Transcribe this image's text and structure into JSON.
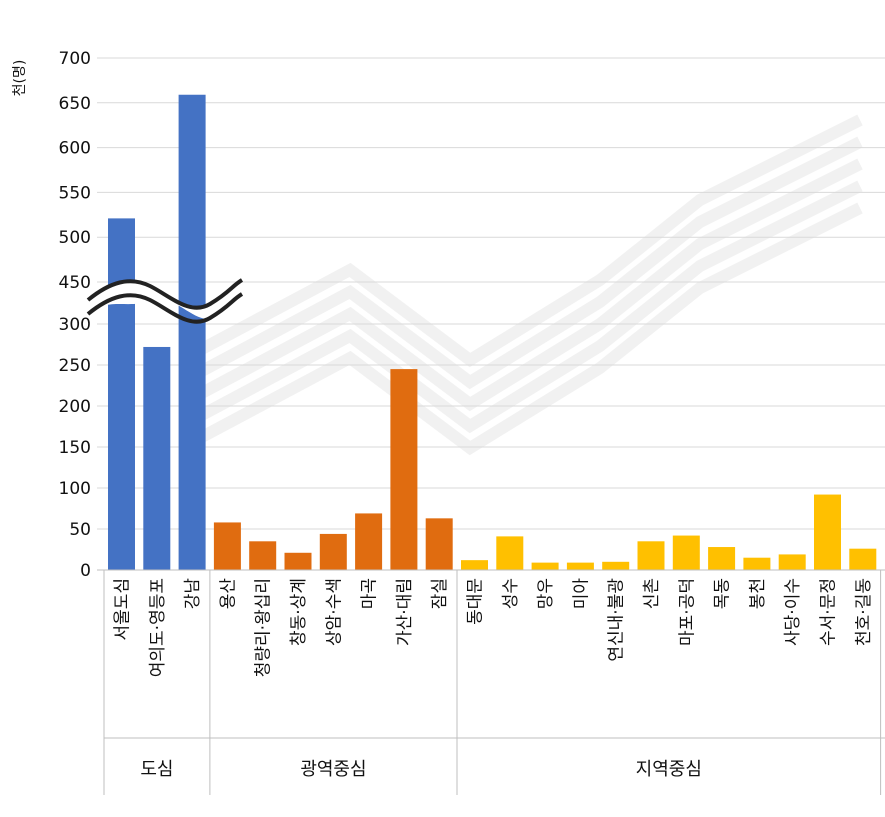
{
  "chart_data": {
    "type": "bar",
    "ylabel": "천(명)",
    "y_axis_ticks": [
      "0",
      "50",
      "100",
      "150",
      "200",
      "250",
      "300",
      "450",
      "500",
      "550",
      "600",
      "650",
      "700"
    ],
    "y_axis_break": [
      300,
      450
    ],
    "grid": true,
    "categories": [
      "서울도심",
      "여의도·영등포",
      "강남",
      "용산",
      "청량리·왕십리",
      "창동·상계",
      "상암·수색",
      "마곡",
      "가산·대림",
      "잠실",
      "동대문",
      "성수",
      "망우",
      "미아",
      "연신내·불광",
      "신촌",
      "마포·공덕",
      "목동",
      "봉천",
      "사당·이수",
      "수서·문정",
      "천호·길동"
    ],
    "values": [
      521,
      272,
      659,
      58,
      35,
      21,
      44,
      69,
      245,
      63,
      12,
      41,
      9,
      9,
      10,
      35,
      42,
      28,
      15,
      19,
      92,
      26
    ],
    "groups": [
      {
        "name": "도심",
        "count": 3,
        "color": "#4472C4"
      },
      {
        "name": "광역중심",
        "count": 7,
        "color": "#E06C10"
      },
      {
        "name": "지역중심",
        "count": 12,
        "color": "#FFC000"
      }
    ]
  }
}
